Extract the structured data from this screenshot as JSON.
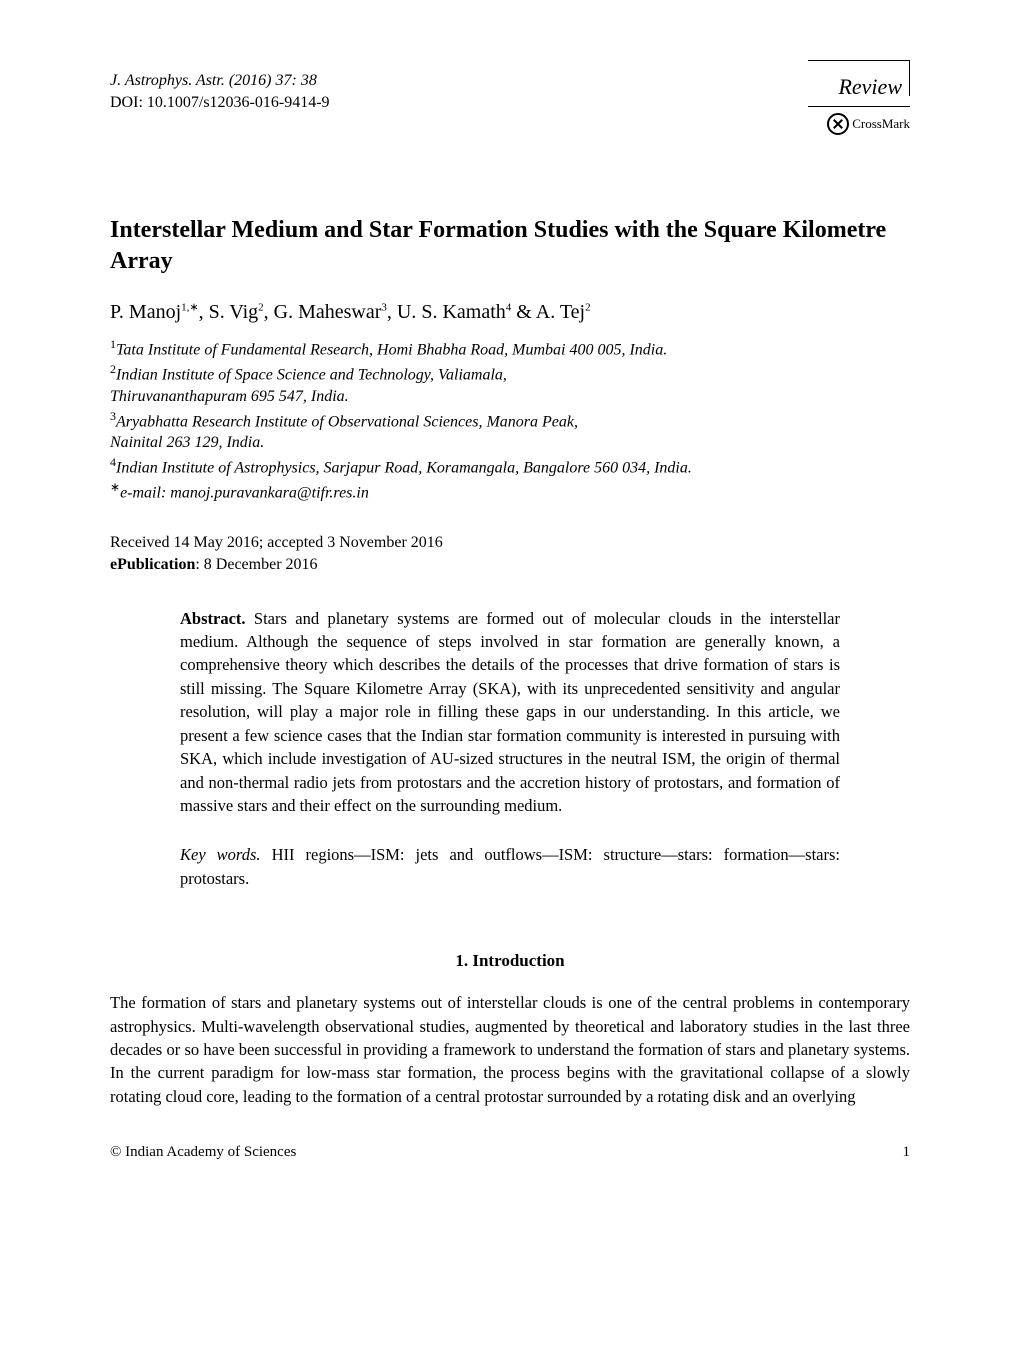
{
  "journal": {
    "citation": "J. Astrophys. Astr. (2016) 37: 38",
    "doi": "DOI: 10.1007/s12036-016-9414-9"
  },
  "badge": {
    "review": "Review",
    "crossmark": "CrossMark"
  },
  "title": "Interstellar Medium and Star Formation Studies with the Square Kilometre Array",
  "authors": {
    "a1_name": "P. Manoj",
    "a1_sup": "1,∗",
    "a2_name": "S. Vig",
    "a2_sup": "2",
    "a3_name": "G. Maheswar",
    "a3_sup": "3",
    "a4_name": "U. S. Kamath",
    "a4_sup": "4",
    "a5_name": "A. Tej",
    "a5_sup": "2",
    "sep": ",  ",
    "amp": " & "
  },
  "affiliations": {
    "l1": "Tata Institute of Fundamental Research, Homi Bhabha Road, Mumbai 400 005, India.",
    "l2": "Indian Institute of Space Science and Technology, Valiamala,",
    "l2b": "Thiruvananthapuram 695 547, India.",
    "l3": "Aryabhatta Research Institute of Observational Sciences, Manora Peak,",
    "l3b": "Nainital 263 129, India.",
    "l4": "Indian Institute of Astrophysics, Sarjapur Road, Koramangala, Bangalore 560 034, India.",
    "email": "e-mail: manoj.puravankara@tifr.res.in"
  },
  "dates": {
    "received": "Received 14 May 2016; accepted 3 November 2016",
    "epub_label": "ePublication",
    "epub_date": ": 8 December 2016"
  },
  "abstract": {
    "label": "Abstract.",
    "text": "  Stars and planetary systems are formed out of molecular clouds in the interstellar medium. Although the sequence of steps involved in star formation are generally known, a comprehensive theory which describes the details of the processes that drive formation of stars is still missing. The Square Kilometre Array (SKA), with its unprecedented sensitivity and angular resolution, will play a major role in filling these gaps in our understanding. In this article, we present a few science cases that the Indian star formation community is interested in pursuing with SKA, which include investigation of AU-sized structures in the neutral ISM, the origin of thermal and non-thermal radio jets from protostars and the accretion history of protostars, and formation of massive stars and their effect on the surrounding medium."
  },
  "keywords": {
    "label": "Key words.",
    "text": "  HII regions—ISM: jets and outflows—ISM: structure—stars: formation—stars: protostars."
  },
  "section": {
    "heading": "1. Introduction",
    "p1": "The formation of stars and planetary systems out of interstellar clouds is one of the central problems in contemporary astrophysics. Multi-wavelength observational studies, augmented by theoretical and laboratory studies in the last three decades or so have been successful in providing a framework to understand the formation of stars and planetary systems. In the current paradigm for low-mass star formation, the process begins with the gravitational collapse of a slowly rotating cloud core, leading to the formation of a central protostar surrounded by a rotating disk and an overlying"
  },
  "footer": {
    "copyright": "© Indian Academy of Sciences",
    "page": "1"
  }
}
